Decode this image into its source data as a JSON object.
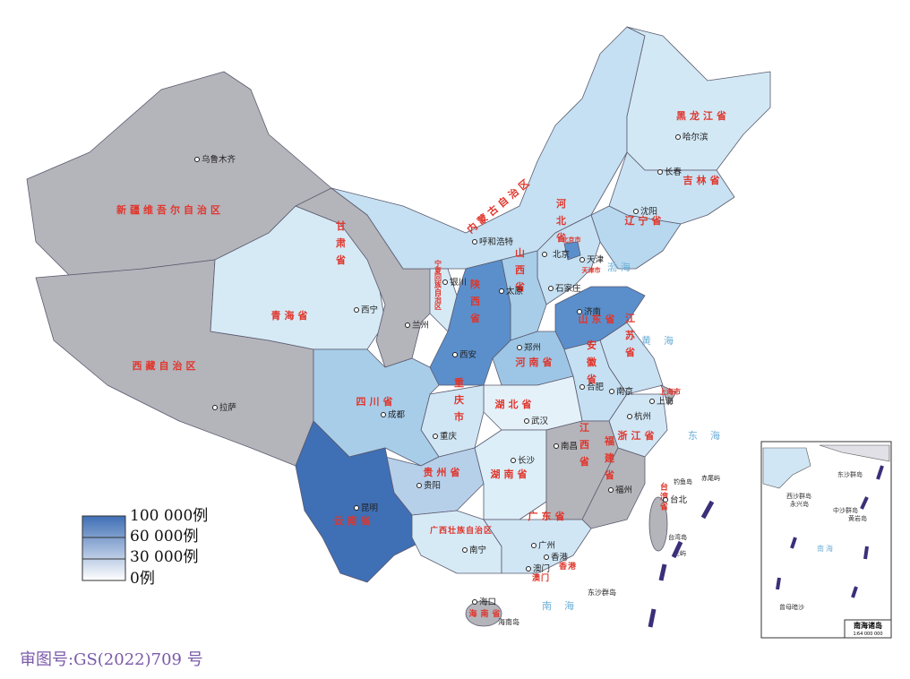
{
  "legend": {
    "labels": [
      "100 000例",
      "60 000例",
      "30 000例",
      "0例"
    ]
  },
  "provinces": [
    "新疆维吾尔自治区",
    "西藏自治区",
    "青海省",
    "甘肃省",
    "内蒙古自治区",
    "黑龙江省",
    "吉林省",
    "辽宁省",
    "北京市",
    "天津市",
    "河北省",
    "山西省",
    "山东省",
    "河南省",
    "陕西省",
    "宁夏回族自治区",
    "江苏省",
    "安徽省",
    "上海市",
    "浙江省",
    "湖北省",
    "重庆市",
    "四川省",
    "贵州省",
    "湖南省",
    "江西省",
    "福建省",
    "云南省",
    "广西壮族自治区",
    "广东省",
    "香港",
    "澳门",
    "海南省",
    "台湾省"
  ],
  "cities": [
    "乌鲁木齐",
    "呼和浩特",
    "北京",
    "天津",
    "银川",
    "太原",
    "石家庄",
    "西宁",
    "兰州",
    "济南",
    "郑州",
    "西安",
    "合肥",
    "南京",
    "上海",
    "成都",
    "重庆",
    "武汉",
    "杭州",
    "南昌",
    "长沙",
    "福州",
    "贵阳",
    "昆明",
    "南宁",
    "广州",
    "香港",
    "澳门",
    "海口",
    "台北",
    "拉萨",
    "哈尔滨",
    "长春",
    "沈阳"
  ],
  "islands": [
    "钓鱼岛",
    "赤尾屿",
    "台湾岛",
    "兰屿",
    "东沙群岛",
    "海南岛"
  ],
  "seas": [
    "渤海",
    "黄海",
    "东海",
    "南海"
  ],
  "inset": {
    "title": "南海诸岛",
    "scale": "1∶64 000 000",
    "labels": [
      "东沙群岛",
      "西沙群岛",
      "永兴岛",
      "中沙群岛",
      "黄岩岛",
      "南海",
      "曾母暗沙"
    ]
  },
  "footer": "审图号:GS(2022)709 号"
}
